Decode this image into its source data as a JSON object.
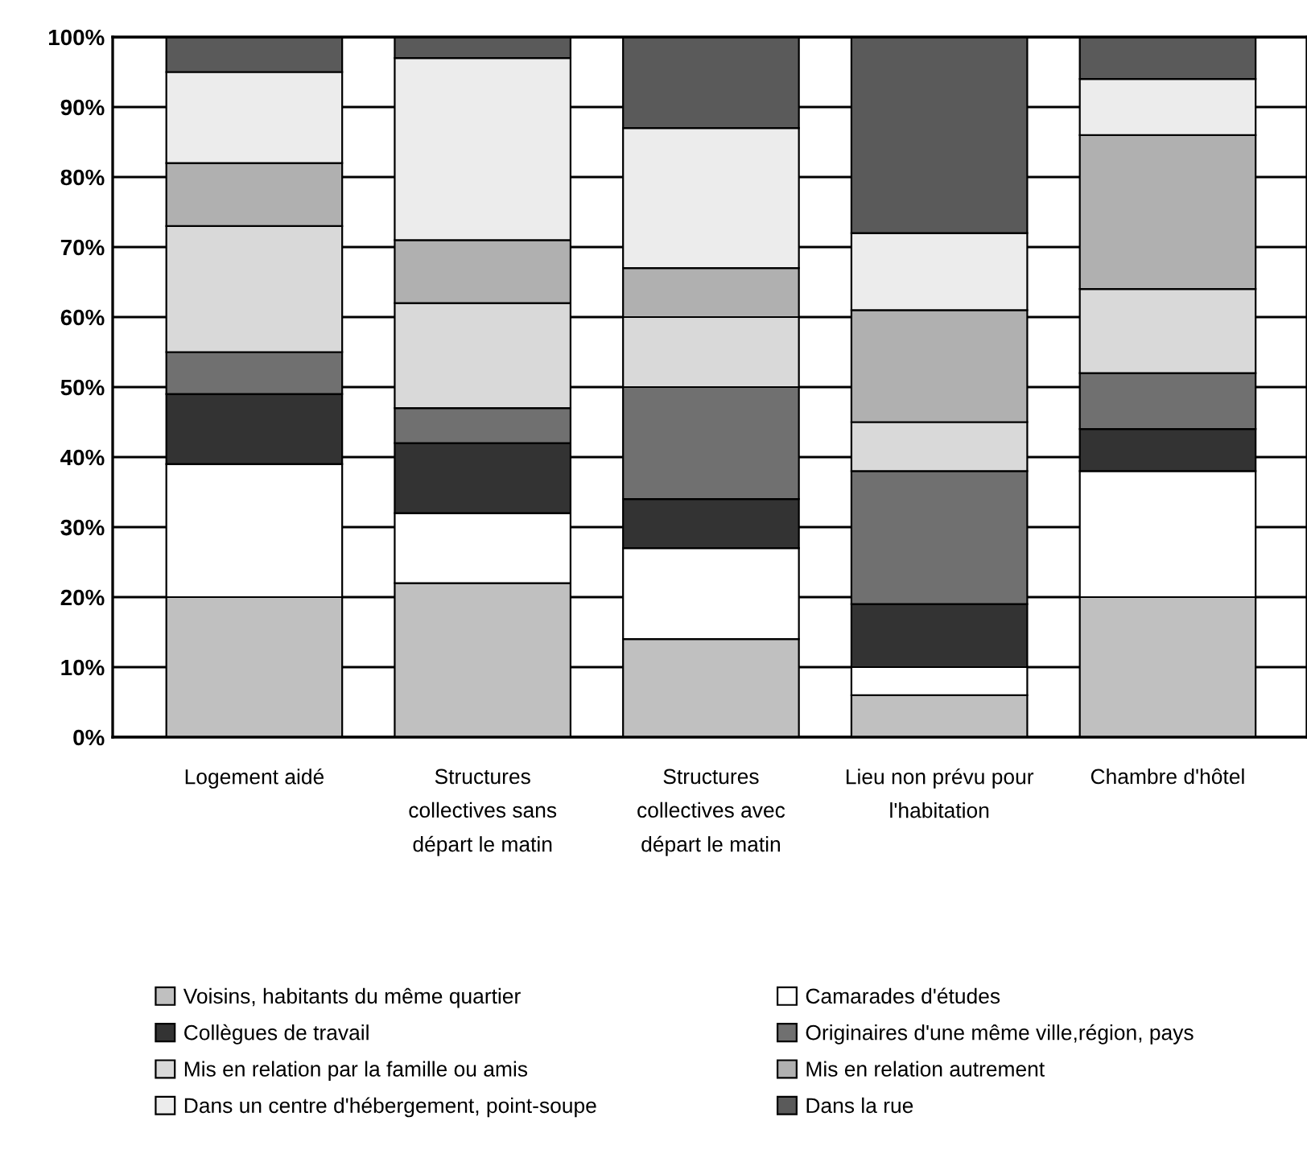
{
  "chart_data": {
    "type": "bar",
    "stacked": true,
    "categories": [
      "Logement aidé",
      "Structures\ncollectives sans\ndépart le matin",
      "Structures\ncollectives avec\ndépart le matin",
      "Lieu non prévu pour\nl'habitation",
      "Chambre d'hôtel"
    ],
    "series": [
      {
        "name": "Voisins, habitants du même quartier",
        "color": "#c0c0c0",
        "values": [
          20,
          22,
          14,
          6,
          20
        ]
      },
      {
        "name": "Camarades d'études",
        "color": "#ffffff",
        "values": [
          19,
          10,
          13,
          4,
          18
        ]
      },
      {
        "name": "Collègues de travail",
        "color": "#333333",
        "values": [
          10,
          10,
          7,
          9,
          6
        ]
      },
      {
        "name": "Originaires d'une même ville,région, pays",
        "color": "#707070",
        "values": [
          6,
          5,
          16,
          19,
          8
        ]
      },
      {
        "name": "Mis en relation par la famille ou amis",
        "color": "#d9d9d9",
        "values": [
          18,
          15,
          10,
          7,
          12
        ]
      },
      {
        "name": "Mis en relation autrement",
        "color": "#b0b0b0",
        "values": [
          9,
          9,
          7,
          16,
          22
        ]
      },
      {
        "name": "Dans un centre d'hébergement, point-soupe",
        "color": "#ececec",
        "values": [
          13,
          26,
          20,
          11,
          8
        ]
      },
      {
        "name": "Dans la rue",
        "color": "#5a5a5a",
        "values": [
          5,
          3,
          13,
          28,
          6
        ]
      }
    ],
    "ylim": [
      0,
      100
    ],
    "yticks": [
      {
        "value": 0,
        "label": "0%"
      },
      {
        "value": 10,
        "label": "10%"
      },
      {
        "value": 20,
        "label": "20%"
      },
      {
        "value": 30,
        "label": "30%"
      },
      {
        "value": 40,
        "label": "40%"
      },
      {
        "value": 50,
        "label": "50%"
      },
      {
        "value": 60,
        "label": "60%"
      },
      {
        "value": 70,
        "label": "70%"
      },
      {
        "value": 80,
        "label": "80%"
      },
      {
        "value": 90,
        "label": "90%"
      },
      {
        "value": 100,
        "label": "100%"
      }
    ],
    "grid": "y",
    "legend": "bottom"
  }
}
